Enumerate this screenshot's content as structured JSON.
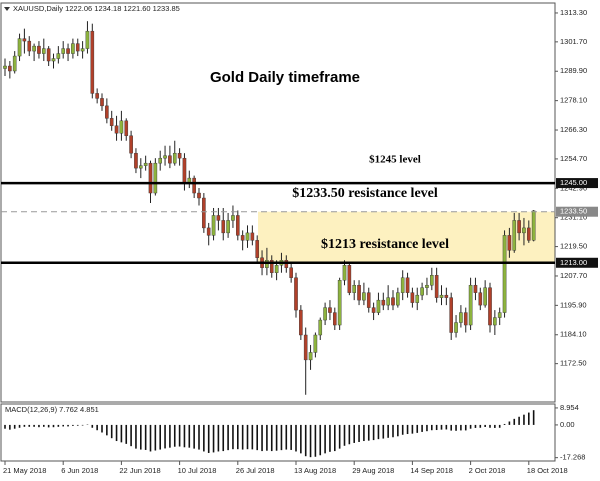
{
  "chart_data": {
    "type": "candlestick",
    "header": "XAUUSD,Daily  1222.06 1234.18 1221.60 1233.85",
    "title": "Gold Daily timeframe",
    "annotations": [
      "$1245 level",
      "$1233.50 resistance level",
      "$1213 resistance level"
    ],
    "up_color": "#8db33e",
    "down_color": "#b0402a",
    "wick_color": "#222",
    "ylim": [
      1157.5,
      1316.9
    ],
    "yticks": [
      {
        "value": 1313.3,
        "label": "1313.30"
      },
      {
        "value": 1301.7,
        "label": "1301.70"
      },
      {
        "value": 1289.9,
        "label": "1289.90"
      },
      {
        "value": 1278.1,
        "label": "1278.10"
      },
      {
        "value": 1266.3,
        "label": "1266.30"
      },
      {
        "value": 1254.7,
        "label": "1254.70"
      },
      {
        "value": 1242.9,
        "label": "1242.90"
      },
      {
        "value": 1231.1,
        "label": "1231.10"
      },
      {
        "value": 1219.5,
        "label": "1219.50"
      },
      {
        "value": 1207.7,
        "label": "1207.70"
      },
      {
        "value": 1195.9,
        "label": "1195.90"
      },
      {
        "value": 1184.1,
        "label": "1184.10"
      },
      {
        "value": 1172.5,
        "label": "1172.50"
      }
    ],
    "levels": [
      {
        "value": 1245,
        "label": "1245.00",
        "style": "solid",
        "color": "#000"
      },
      {
        "value": 1233.5,
        "label": "1233.50",
        "style": "dashed",
        "color": "#999"
      },
      {
        "value": 1213,
        "label": "1213.00",
        "style": "solid",
        "color": "#000"
      }
    ],
    "zone_color": "#fdf1c0",
    "categories": [
      "21 May 2018",
      null,
      null,
      null,
      null,
      null,
      null,
      null,
      null,
      null,
      null,
      null,
      "6 Jun 2018",
      null,
      null,
      null,
      null,
      null,
      null,
      null,
      null,
      null,
      null,
      null,
      "22 Jun 2018",
      null,
      null,
      null,
      null,
      null,
      null,
      null,
      null,
      null,
      null,
      null,
      "10 Jul 2018",
      null,
      null,
      null,
      null,
      null,
      null,
      null,
      null,
      null,
      null,
      null,
      "26 Jul 2018",
      null,
      null,
      null,
      null,
      null,
      null,
      null,
      null,
      null,
      null,
      null,
      "13 Aug 2018",
      null,
      null,
      null,
      null,
      null,
      null,
      null,
      null,
      null,
      null,
      null,
      "29 Aug 2018",
      null,
      null,
      null,
      null,
      null,
      null,
      null,
      null,
      null,
      null,
      null,
      "14 Sep 2018",
      null,
      null,
      null,
      null,
      null,
      null,
      null,
      null,
      null,
      null,
      null,
      "2 Oct 2018",
      null,
      null,
      null,
      null,
      null,
      null,
      null,
      null,
      null,
      null,
      null,
      "18 Oct 2018",
      null
    ],
    "ohlc": [
      [
        1291,
        1295,
        1288,
        1292
      ],
      [
        1292,
        1294,
        1287,
        1290
      ],
      [
        1290,
        1298,
        1289,
        1296
      ],
      [
        1296,
        1305,
        1294,
        1303
      ],
      [
        1303,
        1307,
        1297,
        1302
      ],
      [
        1302,
        1304,
        1296,
        1298
      ],
      [
        1298,
        1301,
        1294,
        1300
      ],
      [
        1300,
        1302,
        1295,
        1297
      ],
      [
        1297,
        1303,
        1294,
        1299
      ],
      [
        1299,
        1300,
        1292,
        1294
      ],
      [
        1294,
        1297,
        1291,
        1295
      ],
      [
        1295,
        1300,
        1293,
        1297
      ],
      [
        1297,
        1302,
        1295,
        1299
      ],
      [
        1299,
        1301,
        1294,
        1297
      ],
      [
        1297,
        1303,
        1295,
        1301
      ],
      [
        1301,
        1303,
        1296,
        1298
      ],
      [
        1298,
        1302,
        1295,
        1299
      ],
      [
        1299,
        1310,
        1297,
        1306
      ],
      [
        1306,
        1309,
        1279,
        1281
      ],
      [
        1281,
        1283,
        1277,
        1279
      ],
      [
        1279,
        1281,
        1274,
        1276
      ],
      [
        1276,
        1279,
        1269,
        1271
      ],
      [
        1271,
        1274,
        1266,
        1268
      ],
      [
        1268,
        1272,
        1262,
        1265
      ],
      [
        1265,
        1274,
        1262,
        1270
      ],
      [
        1270,
        1271,
        1262,
        1264
      ],
      [
        1264,
        1266,
        1255,
        1257
      ],
      [
        1257,
        1259,
        1249,
        1251
      ],
      [
        1251,
        1255,
        1247,
        1252
      ],
      [
        1252,
        1256,
        1250,
        1253
      ],
      [
        1253,
        1254,
        1237,
        1241
      ],
      [
        1241,
        1255,
        1240,
        1253
      ],
      [
        1253,
        1258,
        1250,
        1255
      ],
      [
        1255,
        1260,
        1252,
        1256
      ],
      [
        1256,
        1260,
        1251,
        1253
      ],
      [
        1253,
        1262,
        1252,
        1257
      ],
      [
        1257,
        1259,
        1252,
        1255
      ],
      [
        1255,
        1257,
        1242,
        1245
      ],
      [
        1245,
        1250,
        1243,
        1247
      ],
      [
        1247,
        1248,
        1239,
        1241
      ],
      [
        1241,
        1243,
        1236,
        1239
      ],
      [
        1239,
        1241,
        1225,
        1227
      ],
      [
        1227,
        1229,
        1220,
        1224
      ],
      [
        1224,
        1235,
        1222,
        1232
      ],
      [
        1232,
        1235,
        1226,
        1230
      ],
      [
        1230,
        1235,
        1222,
        1225
      ],
      [
        1225,
        1233,
        1223,
        1230
      ],
      [
        1230,
        1236,
        1227,
        1232
      ],
      [
        1232,
        1234,
        1222,
        1224
      ],
      [
        1224,
        1226,
        1218,
        1222
      ],
      [
        1222,
        1228,
        1219,
        1225
      ],
      [
        1225,
        1228,
        1220,
        1222
      ],
      [
        1222,
        1224,
        1213,
        1215
      ],
      [
        1215,
        1218,
        1208,
        1211
      ],
      [
        1211,
        1219,
        1208,
        1214
      ],
      [
        1214,
        1216,
        1207,
        1209
      ],
      [
        1209,
        1214,
        1206,
        1212
      ],
      [
        1212,
        1217,
        1209,
        1214
      ],
      [
        1214,
        1216,
        1209,
        1211
      ],
      [
        1211,
        1213,
        1205,
        1207
      ],
      [
        1207,
        1209,
        1191,
        1194
      ],
      [
        1194,
        1196,
        1182,
        1184
      ],
      [
        1184,
        1187,
        1160,
        1174
      ],
      [
        1174,
        1180,
        1170,
        1177
      ],
      [
        1177,
        1185,
        1175,
        1184
      ],
      [
        1184,
        1191,
        1182,
        1190
      ],
      [
        1190,
        1197,
        1188,
        1195
      ],
      [
        1195,
        1198,
        1190,
        1193
      ],
      [
        1193,
        1195,
        1186,
        1188
      ],
      [
        1188,
        1207,
        1186,
        1206
      ],
      [
        1206,
        1214,
        1204,
        1212
      ],
      [
        1212,
        1213,
        1200,
        1201
      ],
      [
        1201,
        1206,
        1198,
        1204
      ],
      [
        1204,
        1206,
        1196,
        1198
      ],
      [
        1198,
        1205,
        1196,
        1201
      ],
      [
        1201,
        1203,
        1193,
        1195
      ],
      [
        1195,
        1197,
        1190,
        1193
      ],
      [
        1193,
        1201,
        1192,
        1198
      ],
      [
        1198,
        1201,
        1194,
        1196
      ],
      [
        1196,
        1204,
        1194,
        1199
      ],
      [
        1199,
        1202,
        1194,
        1196
      ],
      [
        1196,
        1203,
        1195,
        1201
      ],
      [
        1201,
        1210,
        1198,
        1207
      ],
      [
        1207,
        1209,
        1199,
        1201
      ],
      [
        1201,
        1203,
        1195,
        1197
      ],
      [
        1197,
        1203,
        1194,
        1200
      ],
      [
        1200,
        1205,
        1198,
        1203
      ],
      [
        1203,
        1207,
        1200,
        1204
      ],
      [
        1204,
        1211,
        1202,
        1208
      ],
      [
        1208,
        1211,
        1197,
        1199
      ],
      [
        1199,
        1204,
        1196,
        1200
      ],
      [
        1200,
        1203,
        1196,
        1199
      ],
      [
        1199,
        1201,
        1182,
        1185
      ],
      [
        1185,
        1192,
        1183,
        1189
      ],
      [
        1189,
        1196,
        1187,
        1193
      ],
      [
        1193,
        1195,
        1185,
        1188
      ],
      [
        1188,
        1207,
        1186,
        1204
      ],
      [
        1204,
        1207,
        1198,
        1201
      ],
      [
        1201,
        1203,
        1194,
        1196
      ],
      [
        1196,
        1206,
        1195,
        1203
      ],
      [
        1203,
        1205,
        1185,
        1188
      ],
      [
        1188,
        1194,
        1184,
        1191
      ],
      [
        1191,
        1195,
        1188,
        1193
      ],
      [
        1193,
        1226,
        1191,
        1224
      ],
      [
        1224,
        1227,
        1215,
        1218
      ],
      [
        1218,
        1233,
        1217,
        1230
      ],
      [
        1230,
        1233,
        1222,
        1225
      ],
      [
        1225,
        1231,
        1220,
        1227
      ],
      [
        1227,
        1230,
        1221,
        1222
      ],
      [
        1222.06,
        1234.18,
        1221.6,
        1233.85
      ]
    ],
    "macd": {
      "label": "MACD(12,26,9) 7.762 4.851",
      "color": "#111",
      "ylim": [
        -18.5,
        10.5
      ],
      "yticks": [
        8.954,
        {
          "value": 0,
          "label": "0.00"
        },
        -17.268
      ],
      "values": [
        -2,
        -2.5,
        -2,
        -1.5,
        -1,
        -1,
        -1,
        -1.2,
        -1,
        -1.3,
        -1.2,
        -1,
        -0.8,
        -0.8,
        -0.5,
        -0.4,
        -0.3,
        0.2,
        -1.5,
        -2.8,
        -4,
        -5.5,
        -7,
        -8.5,
        -9.2,
        -10,
        -11.2,
        -12.5,
        -13,
        -13.2,
        -14,
        -13.5,
        -13,
        -12.4,
        -12,
        -11.5,
        -11.4,
        -11.8,
        -12,
        -12.5,
        -13,
        -14,
        -14.8,
        -14.5,
        -14,
        -13.8,
        -13.3,
        -12.8,
        -12.8,
        -13,
        -12.8,
        -12.9,
        -13.3,
        -13.8,
        -13.6,
        -13.8,
        -13.6,
        -13.3,
        -13,
        -13.2,
        -14,
        -15,
        -16.5,
        -17,
        -16.8,
        -16,
        -15,
        -14.2,
        -13.8,
        -12.5,
        -11,
        -10.2,
        -9.5,
        -9,
        -8.5,
        -8.3,
        -8,
        -7.5,
        -7.2,
        -6.8,
        -6.5,
        -6,
        -5.2,
        -4.8,
        -4.6,
        -4.2,
        -3.7,
        -3.3,
        -2.8,
        -2.7,
        -2.5,
        -2.4,
        -3,
        -3.1,
        -2.9,
        -2.9,
        -2,
        -1.6,
        -1.5,
        -1.1,
        -1.5,
        -1.6,
        -1.5,
        0.5,
        1.8,
        3.2,
        4.3,
        5.4,
        6.5,
        7.762
      ]
    }
  }
}
